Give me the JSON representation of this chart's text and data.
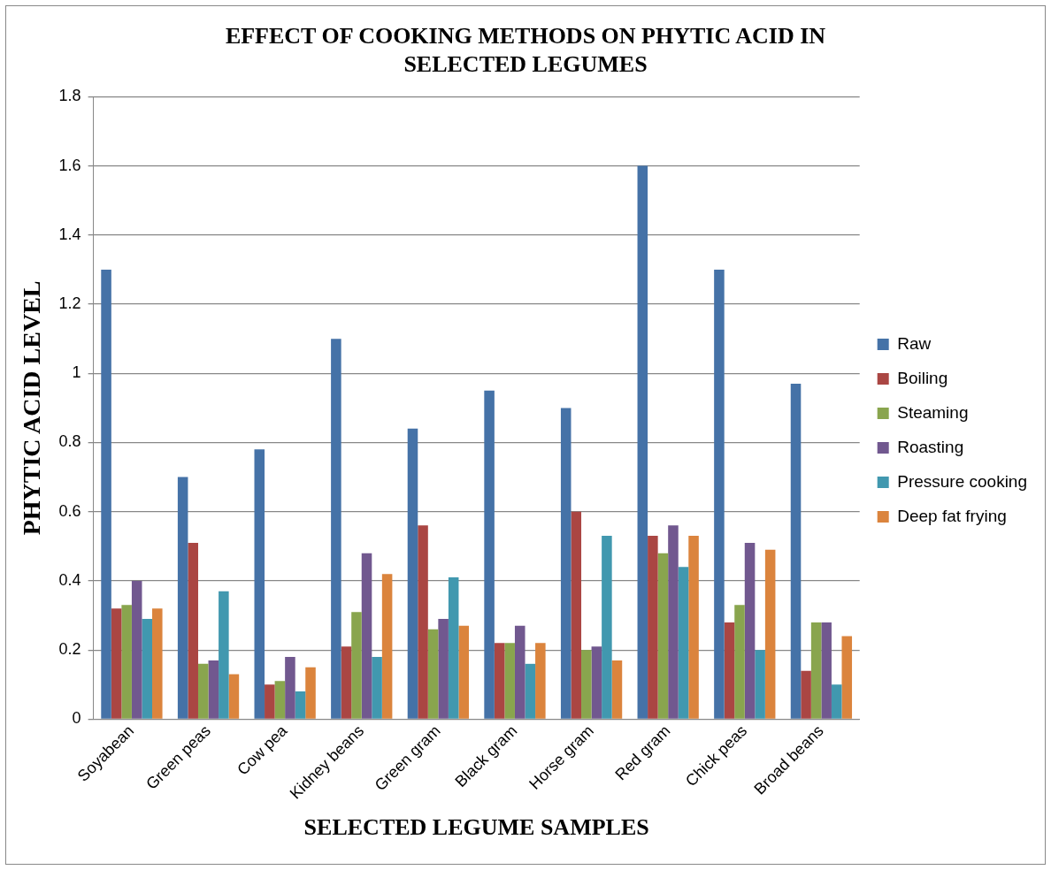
{
  "chart_data": {
    "type": "bar",
    "title": "EFFECT OF COOKING METHODS ON PHYTIC ACID IN SELECTED LEGUMES",
    "xlabel": "SELECTED LEGUME SAMPLES",
    "ylabel": "PHYTIC ACID LEVEL",
    "categories": [
      "Soyabean",
      "Green peas",
      "Cow pea",
      "Kidney beans",
      "Green gram",
      "Black gram",
      "Horse gram",
      "Red gram",
      "Chick peas",
      "Broad beans"
    ],
    "series": [
      {
        "name": "Raw",
        "color": "#4572a7",
        "values": [
          1.3,
          0.7,
          0.78,
          1.1,
          0.84,
          0.95,
          0.9,
          1.6,
          1.3,
          0.97
        ]
      },
      {
        "name": "Boiling",
        "color": "#aa4643",
        "values": [
          0.32,
          0.51,
          0.1,
          0.21,
          0.56,
          0.22,
          0.6,
          0.53,
          0.28,
          0.14
        ]
      },
      {
        "name": "Steaming",
        "color": "#89a54e",
        "values": [
          0.33,
          0.16,
          0.11,
          0.31,
          0.26,
          0.22,
          0.2,
          0.48,
          0.33,
          0.28
        ]
      },
      {
        "name": "Roasting",
        "color": "#71588f",
        "values": [
          0.4,
          0.17,
          0.18,
          0.48,
          0.29,
          0.27,
          0.21,
          0.56,
          0.51,
          0.28
        ]
      },
      {
        "name": "Pressure cooking",
        "color": "#4198af",
        "values": [
          0.29,
          0.37,
          0.08,
          0.18,
          0.41,
          0.16,
          0.53,
          0.44,
          0.2,
          0.1
        ]
      },
      {
        "name": "Deep fat frying",
        "color": "#db843d",
        "values": [
          0.32,
          0.13,
          0.15,
          0.42,
          0.27,
          0.22,
          0.17,
          0.53,
          0.49,
          0.24
        ]
      }
    ],
    "ylim": [
      0,
      1.8
    ],
    "yticks": [
      0,
      0.2,
      0.4,
      0.6,
      0.8,
      1,
      1.2,
      1.4,
      1.6,
      1.8
    ],
    "grid": "y",
    "legend": "right"
  }
}
